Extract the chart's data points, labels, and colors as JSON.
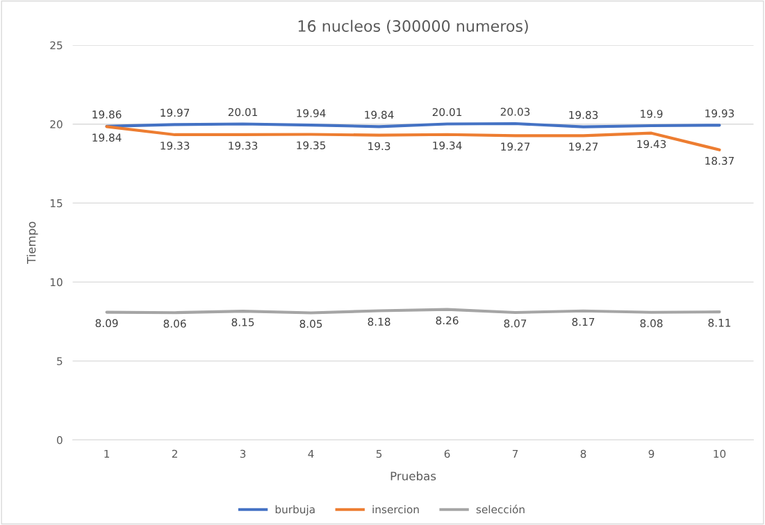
{
  "chart_data": {
    "type": "line",
    "title": "16 nucleos (300000 numeros)",
    "xlabel": "Pruebas",
    "ylabel": "Tiempo",
    "categories": [
      "1",
      "2",
      "3",
      "4",
      "5",
      "6",
      "7",
      "8",
      "9",
      "10"
    ],
    "series": [
      {
        "name": "burbuja",
        "color": "#4472c4",
        "values": [
          19.86,
          19.97,
          20.01,
          19.94,
          19.84,
          20.01,
          20.03,
          19.83,
          19.9,
          19.93
        ]
      },
      {
        "name": "insercion",
        "color": "#ed7d31",
        "values": [
          19.84,
          19.33,
          19.33,
          19.35,
          19.3,
          19.34,
          19.27,
          19.27,
          19.43,
          18.37
        ]
      },
      {
        "name": "selección",
        "color": "#a5a5a5",
        "values": [
          8.09,
          8.06,
          8.15,
          8.05,
          8.18,
          8.26,
          8.07,
          8.17,
          8.08,
          8.11
        ]
      }
    ],
    "ylim": [
      0,
      25
    ],
    "yticks": [
      0,
      5,
      10,
      15,
      20,
      25
    ],
    "grid": "y",
    "legend": "bottom",
    "marker": "none",
    "line_style": "solid",
    "data_labels": true
  }
}
